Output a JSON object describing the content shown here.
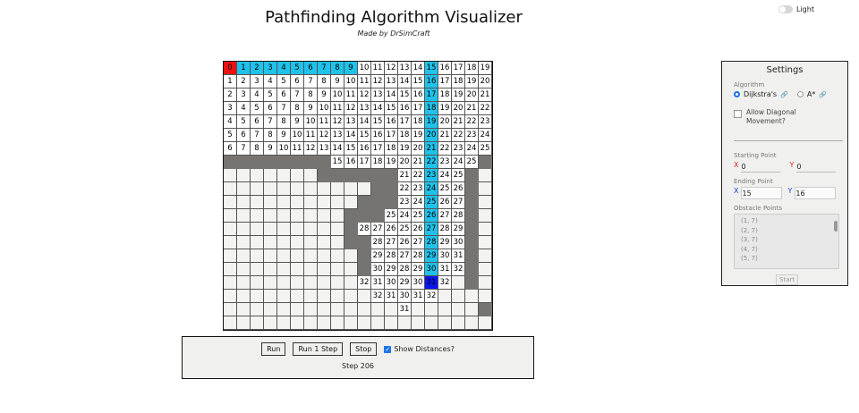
{
  "header": {
    "title": "Pathfinding Algorithm Visualizer",
    "subtitle": "Made by DrSimCraft",
    "theme_label": "Light"
  },
  "grid": {
    "rows": [
      [
        "S0",
        "P1",
        "P2",
        "P3",
        "P4",
        "P5",
        "P6",
        "P7",
        "P8",
        "P9",
        "10",
        "11",
        "12",
        "13",
        "14",
        "P15",
        "16",
        "17",
        "18",
        "19"
      ],
      [
        "1",
        "2",
        "3",
        "4",
        "5",
        "6",
        "7",
        "8",
        "9",
        "10",
        "11",
        "12",
        "13",
        "14",
        "15",
        "P16",
        "17",
        "18",
        "19",
        "20"
      ],
      [
        "2",
        "3",
        "4",
        "5",
        "6",
        "7",
        "8",
        "9",
        "10",
        "11",
        "12",
        "13",
        "14",
        "15",
        "16",
        "P17",
        "18",
        "19",
        "20",
        "21"
      ],
      [
        "3",
        "4",
        "5",
        "6",
        "7",
        "8",
        "9",
        "10",
        "11",
        "12",
        "13",
        "14",
        "15",
        "16",
        "17",
        "P18",
        "19",
        "20",
        "21",
        "22"
      ],
      [
        "4",
        "5",
        "6",
        "7",
        "8",
        "9",
        "10",
        "11",
        "12",
        "13",
        "14",
        "15",
        "16",
        "17",
        "18",
        "P19",
        "20",
        "21",
        "22",
        "23"
      ],
      [
        "5",
        "6",
        "7",
        "8",
        "9",
        "10",
        "11",
        "12",
        "13",
        "14",
        "15",
        "16",
        "17",
        "18",
        "19",
        "P20",
        "21",
        "22",
        "23",
        "24"
      ],
      [
        "6",
        "7",
        "8",
        "9",
        "10",
        "11",
        "12",
        "13",
        "14",
        "15",
        "16",
        "17",
        "18",
        "19",
        "20",
        "P21",
        "22",
        "23",
        "24",
        "25"
      ],
      [
        "#",
        "#",
        "#",
        "#",
        "#",
        "#",
        "#",
        "#",
        "15",
        "16",
        "17",
        "18",
        "19",
        "20",
        "21",
        "P22",
        "23",
        "24",
        "25",
        "#"
      ],
      [
        "",
        "",
        "",
        "",
        "",
        "",
        "",
        "#",
        "#",
        "#",
        "#",
        "#",
        "#",
        "21",
        "22",
        "P23",
        "24",
        "25",
        "#",
        ""
      ],
      [
        "",
        "",
        "",
        "",
        "",
        "",
        "",
        "",
        "",
        "",
        "",
        "#",
        "#",
        "22",
        "23",
        "P24",
        "25",
        "26",
        "#",
        ""
      ],
      [
        "",
        "",
        "",
        "",
        "",
        "",
        "",
        "",
        "",
        "",
        "#",
        "#",
        "#",
        "23",
        "24",
        "P25",
        "26",
        "27",
        "#",
        ""
      ],
      [
        "",
        "",
        "",
        "",
        "",
        "",
        "",
        "",
        "",
        "#",
        "#",
        "#",
        "25",
        "24",
        "25",
        "P26",
        "27",
        "28",
        "#",
        ""
      ],
      [
        "",
        "",
        "",
        "",
        "",
        "",
        "",
        "",
        "",
        "#",
        "28",
        "27",
        "26",
        "25",
        "26",
        "P27",
        "28",
        "29",
        "#",
        ""
      ],
      [
        "",
        "",
        "",
        "",
        "",
        "",
        "",
        "",
        "",
        "#",
        "#",
        "28",
        "27",
        "26",
        "27",
        "P28",
        "29",
        "30",
        "#",
        ""
      ],
      [
        "",
        "",
        "",
        "",
        "",
        "",
        "",
        "",
        "",
        "",
        "#",
        "29",
        "28",
        "27",
        "28",
        "P29",
        "30",
        "31",
        "#",
        ""
      ],
      [
        "",
        "",
        "",
        "",
        "",
        "",
        "",
        "",
        "",
        "",
        "#",
        "30",
        "29",
        "28",
        "29",
        "P30",
        "31",
        "32",
        "#",
        ""
      ],
      [
        "",
        "",
        "",
        "",
        "",
        "",
        "",
        "",
        "",
        "",
        "32",
        "31",
        "30",
        "29",
        "30",
        "E31",
        "32",
        "",
        "#",
        ""
      ],
      [
        "",
        "",
        "",
        "",
        "",
        "",
        "",
        "",
        "",
        "",
        "",
        "32",
        "31",
        "30",
        "31",
        "32",
        "",
        "",
        "",
        ""
      ],
      [
        "",
        "",
        "",
        "",
        "",
        "",
        "",
        "",
        "",
        "",
        "",
        "",
        "",
        "31",
        "",
        "",
        "",
        "",
        "",
        "#"
      ],
      [
        "",
        "",
        "",
        "",
        "",
        "",
        "",
        "",
        "",
        "",
        "",
        "",
        "",
        "",
        "",
        "",
        "",
        "",
        "",
        ""
      ]
    ],
    "colors": {
      "path": "#1ec2ea",
      "wall": "#767470",
      "start": "#ee1111",
      "end": "#0a16f0"
    }
  },
  "controls": {
    "run": "Run",
    "run_one": "Run 1 Step",
    "stop": "Stop",
    "show_distances": "Show Distances?",
    "step": "Step 206"
  },
  "settings": {
    "title": "Settings",
    "algorithm_label": "Algorithm",
    "algo_1": "Dijkstra's",
    "algo_2": "A*",
    "diagonal_1": "Allow Diagonal",
    "diagonal_2": "Movement?",
    "starting_label": "Starting Point",
    "start_x": "0",
    "start_y": "0",
    "ending_label": "Ending Point",
    "end_x": "15",
    "end_y": "16",
    "obstacle_label": "Obstacle Points",
    "obstacles": [
      "(1, 7)",
      "(2, 7)",
      "(3, 7)",
      "(4, 7)",
      "(5, 7)"
    ],
    "start_button": "Start",
    "x_label": "X",
    "y_label": "Y"
  }
}
